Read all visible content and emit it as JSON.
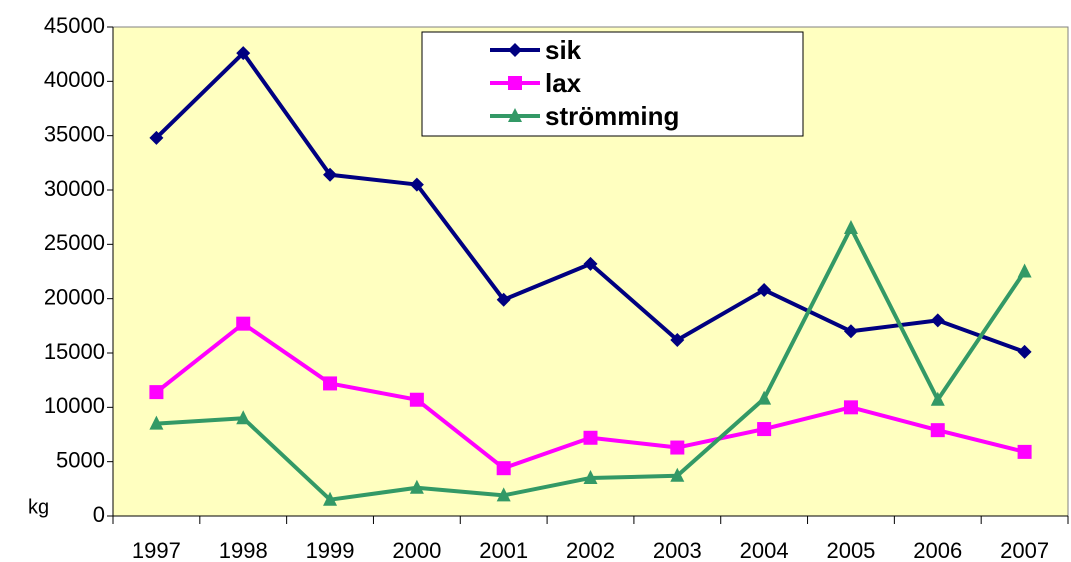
{
  "chart_data": {
    "type": "line",
    "categories": [
      "1997",
      "1998",
      "1999",
      "2000",
      "2001",
      "2002",
      "2003",
      "2004",
      "2005",
      "2006",
      "2007"
    ],
    "series": [
      {
        "name": "sik",
        "color": "#000080",
        "marker": "diamond",
        "values": [
          34800,
          42600,
          31400,
          30500,
          19900,
          23200,
          16200,
          20800,
          17000,
          18000,
          15100
        ]
      },
      {
        "name": "lax",
        "color": "#ff00ff",
        "marker": "square",
        "values": [
          11400,
          17700,
          12200,
          10700,
          4400,
          7200,
          6300,
          8000,
          10000,
          7900,
          5900
        ]
      },
      {
        "name": "strömming",
        "color": "#339966",
        "marker": "triangle",
        "values": [
          8500,
          9000,
          1500,
          2600,
          1900,
          3500,
          3700,
          10800,
          26500,
          10700,
          22500
        ]
      }
    ],
    "y_label": "kg",
    "ylim": [
      0,
      45000
    ],
    "yticks": [
      0,
      5000,
      10000,
      15000,
      20000,
      25000,
      30000,
      35000,
      40000,
      45000
    ],
    "plot_background": "#ffffc0"
  }
}
